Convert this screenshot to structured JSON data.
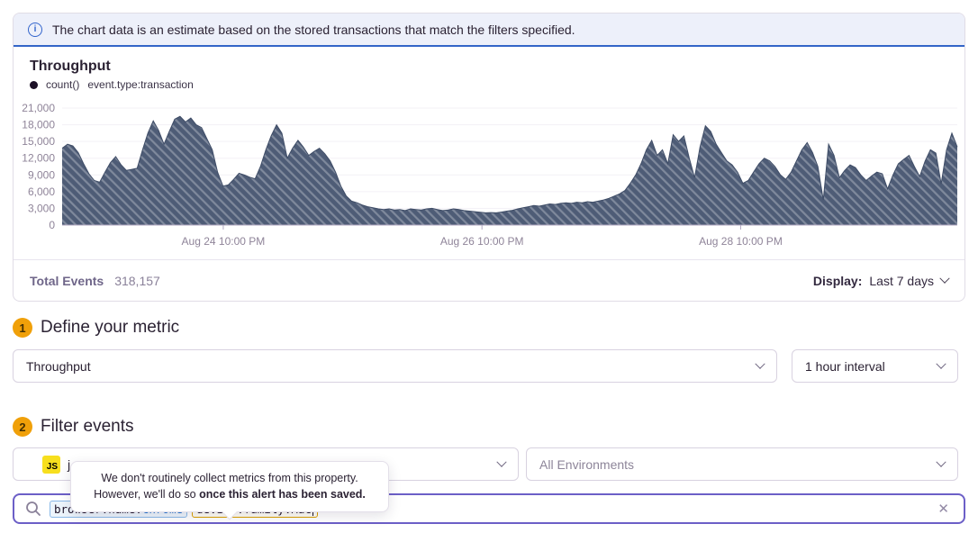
{
  "banner": {
    "text": "The chart data is an estimate based on the stored transactions that match the filters specified."
  },
  "chart_panel": {
    "title": "Throughput",
    "legend_series": "count()",
    "legend_query": "event.type:transaction",
    "footer": {
      "total_label": "Total Events",
      "total_value": "318,157",
      "display_label": "Display:",
      "display_value": "Last 7 days"
    }
  },
  "chart_data": {
    "type": "area",
    "title": "Throughput",
    "style": "hatched-area",
    "color": "#4e5c76",
    "interval": "1 hour",
    "ylim": [
      0,
      21000
    ],
    "y_ticks": [
      0,
      3000,
      6000,
      9000,
      12000,
      15000,
      18000,
      21000
    ],
    "x_tick_labels": [
      "Aug 24 10:00 PM",
      "Aug 26 10:00 PM",
      "Aug 28 10:00 PM"
    ],
    "x_tick_positions": [
      0.18,
      0.469,
      0.758
    ],
    "grid": true,
    "legend_position": "top-left",
    "series": [
      {
        "name": "count()",
        "values": [
          13800,
          14500,
          14200,
          13000,
          11000,
          9200,
          8000,
          7700,
          9500,
          11200,
          12300,
          10800,
          9800,
          10000,
          10200,
          13500,
          16500,
          18700,
          17000,
          14500,
          16800,
          19000,
          19500,
          18500,
          19200,
          18000,
          17500,
          15500,
          13500,
          9500,
          7000,
          7200,
          8200,
          9300,
          9000,
          8600,
          8300,
          10500,
          13500,
          16000,
          18000,
          16500,
          12000,
          13800,
          15200,
          14000,
          12500,
          13200,
          13800,
          12800,
          11500,
          9500,
          7000,
          5200,
          4300,
          4000,
          3600,
          3300,
          3100,
          2900,
          2800,
          2900,
          2700,
          2800,
          2600,
          2900,
          2800,
          2700,
          2900,
          3000,
          2800,
          2600,
          2700,
          2900,
          2800,
          2600,
          2500,
          2400,
          2300,
          2200,
          2250,
          2200,
          2350,
          2500,
          2650,
          2900,
          3100,
          3300,
          3500,
          3400,
          3600,
          3800,
          3700,
          3900,
          4000,
          3900,
          4100,
          4000,
          4200,
          4100,
          4300,
          4500,
          4800,
          5200,
          5600,
          6200,
          7500,
          9000,
          11000,
          13500,
          15200,
          12500,
          13500,
          11000,
          16200,
          15000,
          16000,
          12000,
          8500,
          14000,
          17800,
          16800,
          14500,
          13000,
          11500,
          10800,
          9500,
          7500,
          8000,
          9500,
          11000,
          12000,
          11500,
          10500,
          9000,
          8200,
          9500,
          11500,
          13500,
          14800,
          13000,
          10500,
          4500,
          14500,
          12500,
          8500,
          9800,
          10800,
          10300,
          9000,
          8000,
          8800,
          9500,
          9200,
          6500,
          9000,
          11000,
          11800,
          12500,
          10500,
          8700,
          11500,
          13500,
          12900,
          7400,
          13500,
          16500,
          14000
        ]
      }
    ]
  },
  "sections": {
    "metric": {
      "number": "1",
      "title": "Define your metric",
      "metric_select": "Throughput",
      "interval_select": "1 hour interval"
    },
    "filter": {
      "number": "2",
      "title": "Filter events",
      "project_platform_badge": "JS",
      "project_visible_text": "j",
      "environment_select": "All Environments"
    }
  },
  "tooltip": {
    "line1": "We don't routinely collect metrics from this property.",
    "line2_prefix": "However, we'll do so ",
    "line2_bold": "once this alert has been saved."
  },
  "search": {
    "tokens": [
      {
        "key": "browser.name",
        "value": "Chrome",
        "style": "blue",
        "active": false
      },
      {
        "key": "device.family",
        "value": "Mac",
        "style": "warning",
        "active": true
      }
    ]
  },
  "colors": {
    "banner_bg": "#edf0fa",
    "banner_border": "#3365c8",
    "accent_purple": "#6c5fc7",
    "badge_orange": "#f0a009",
    "chart_fill": "#4e5c76",
    "platform_js_yellow": "#f7df1e",
    "token_blue_border": "#8ab9e8",
    "token_blue_value": "#1f6fce",
    "token_warning_border": "#dba000"
  }
}
